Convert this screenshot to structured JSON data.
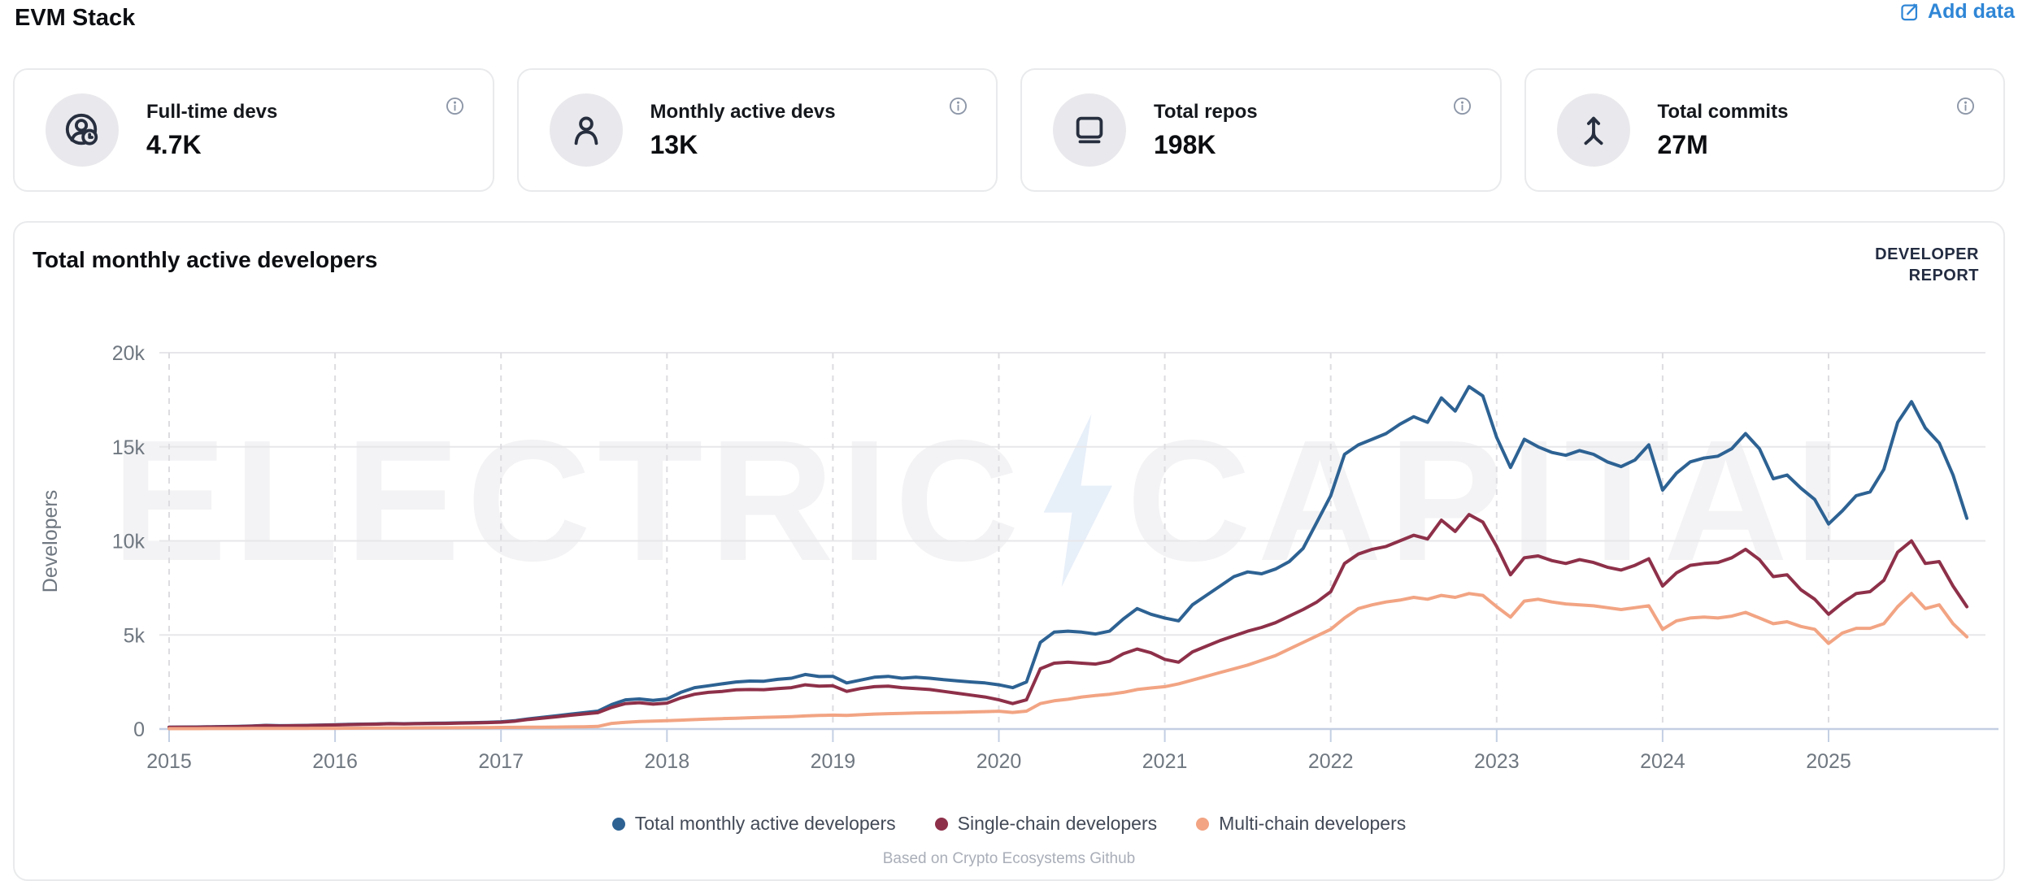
{
  "page": {
    "title": "EVM Stack"
  },
  "header": {
    "add_data_label": "Add data",
    "accent_color": "#2f86d6"
  },
  "stats": [
    {
      "label": "Full-time devs",
      "value": "4.7K",
      "icon": "fulltime-dev-icon"
    },
    {
      "label": "Monthly active devs",
      "value": "13K",
      "icon": "person-icon"
    },
    {
      "label": "Total repos",
      "value": "198K",
      "icon": "laptop-icon"
    },
    {
      "label": "Total commits",
      "value": "27M",
      "icon": "merge-arrow-icon"
    }
  ],
  "chart_card": {
    "title": "Total monthly active developers",
    "badge_line1": "DEVELOPER",
    "badge_line2": "REPORT",
    "watermark_left": "ELECTRIC",
    "watermark_right": "CAPITAL",
    "footer": "Based on Crypto Ecosystems Github"
  },
  "chart_data": {
    "type": "line",
    "title": "Total monthly active developers",
    "xlabel": "",
    "ylabel": "Developers",
    "ylim": [
      0,
      20000
    ],
    "yticks": [
      {
        "v": 0,
        "label": "0"
      },
      {
        "v": 5000,
        "label": "5k"
      },
      {
        "v": 10000,
        "label": "10k"
      },
      {
        "v": 15000,
        "label": "15k"
      },
      {
        "v": 20000,
        "label": "20k"
      }
    ],
    "xticks": [
      {
        "v": 2015,
        "label": "2015"
      },
      {
        "v": 2016,
        "label": "2016"
      },
      {
        "v": 2017,
        "label": "2017"
      },
      {
        "v": 2018,
        "label": "2018"
      },
      {
        "v": 2019,
        "label": "2019"
      },
      {
        "v": 2020,
        "label": "2020"
      },
      {
        "v": 2021,
        "label": "2021"
      },
      {
        "v": 2022,
        "label": "2022"
      },
      {
        "v": 2023,
        "label": "2023"
      },
      {
        "v": 2024,
        "label": "2024"
      },
      {
        "v": 2025,
        "label": "2025"
      }
    ],
    "grid": {
      "horizontal": "solid",
      "vertical": "dashed"
    },
    "legend_position": "bottom",
    "x_start": 2015.0,
    "x_step": 0.083333,
    "x_unit": "year (monthly samples, Jan 2015 - Nov 2025)",
    "series": [
      {
        "name": "Total monthly active developers",
        "color": "#2d6293",
        "values": [
          100,
          105,
          110,
          120,
          130,
          140,
          160,
          195,
          175,
          185,
          195,
          210,
          225,
          245,
          260,
          270,
          290,
          280,
          295,
          305,
          315,
          330,
          340,
          360,
          385,
          440,
          540,
          620,
          700,
          790,
          870,
          950,
          1300,
          1550,
          1600,
          1520,
          1600,
          1950,
          2200,
          2300,
          2400,
          2500,
          2550,
          2540,
          2640,
          2700,
          2900,
          2790,
          2800,
          2450,
          2600,
          2750,
          2800,
          2700,
          2750,
          2700,
          2620,
          2560,
          2500,
          2450,
          2350,
          2200,
          2500,
          4600,
          5150,
          5200,
          5150,
          5050,
          5200,
          5850,
          6400,
          6100,
          5900,
          5750,
          6600,
          7100,
          7600,
          8100,
          8350,
          8250,
          8500,
          8900,
          9600,
          11000,
          12400,
          14600,
          15100,
          15400,
          15700,
          16200,
          16600,
          16300,
          17600,
          16900,
          18200,
          17700,
          15500,
          13900,
          15400,
          15000,
          14700,
          14550,
          14800,
          14600,
          14200,
          13950,
          14300,
          15100,
          12700,
          13600,
          14200,
          14400,
          14500,
          14900,
          15700,
          14900,
          13300,
          13500,
          12800,
          12200,
          10900,
          11600,
          12400,
          12600,
          13800,
          16300,
          17400,
          16000,
          15200,
          13500,
          11200
        ]
      },
      {
        "name": "Single-chain developers",
        "color": "#8e3049",
        "values": [
          90,
          95,
          100,
          110,
          120,
          130,
          150,
          185,
          165,
          175,
          185,
          200,
          215,
          235,
          250,
          260,
          280,
          268,
          283,
          292,
          300,
          312,
          322,
          340,
          365,
          415,
          510,
          580,
          650,
          730,
          800,
          870,
          1150,
          1350,
          1400,
          1320,
          1380,
          1650,
          1850,
          1950,
          2000,
          2080,
          2100,
          2090,
          2150,
          2200,
          2350,
          2280,
          2300,
          2000,
          2150,
          2250,
          2280,
          2200,
          2150,
          2100,
          2000,
          1900,
          1800,
          1700,
          1550,
          1350,
          1550,
          3200,
          3500,
          3550,
          3500,
          3450,
          3600,
          4000,
          4250,
          4050,
          3700,
          3550,
          4100,
          4400,
          4700,
          4950,
          5200,
          5400,
          5650,
          6000,
          6350,
          6750,
          7300,
          8800,
          9300,
          9550,
          9700,
          10000,
          10300,
          10100,
          11100,
          10500,
          11400,
          11000,
          9700,
          8200,
          9100,
          9200,
          8950,
          8800,
          9000,
          8850,
          8600,
          8450,
          8700,
          9050,
          7600,
          8300,
          8700,
          8800,
          8850,
          9100,
          9550,
          9000,
          8100,
          8200,
          7400,
          6900,
          6100,
          6700,
          7200,
          7300,
          7900,
          9400,
          10000,
          8800,
          8900,
          7600,
          6500
        ]
      },
      {
        "name": "Multi-chain developers",
        "color": "#f2a483",
        "values": [
          20,
          21,
          22,
          24,
          26,
          28,
          30,
          31,
          32,
          33,
          34,
          37,
          40,
          43,
          46,
          50,
          53,
          56,
          60,
          63,
          66,
          70,
          74,
          79,
          85,
          90,
          95,
          100,
          105,
          112,
          120,
          140,
          300,
          360,
          400,
          420,
          440,
          470,
          500,
          530,
          555,
          575,
          600,
          620,
          640,
          660,
          695,
          720,
          740,
          720,
          760,
          795,
          815,
          835,
          855,
          865,
          875,
          885,
          905,
          925,
          945,
          880,
          950,
          1350,
          1500,
          1580,
          1700,
          1780,
          1850,
          1950,
          2100,
          2180,
          2250,
          2400,
          2600,
          2800,
          3000,
          3200,
          3400,
          3650,
          3900,
          4250,
          4600,
          4950,
          5300,
          5900,
          6400,
          6600,
          6750,
          6850,
          7000,
          6900,
          7100,
          7000,
          7200,
          7100,
          6500,
          5950,
          6800,
          6900,
          6750,
          6650,
          6600,
          6550,
          6450,
          6350,
          6450,
          6550,
          5300,
          5750,
          5900,
          5950,
          5900,
          6000,
          6200,
          5900,
          5600,
          5700,
          5450,
          5300,
          4550,
          5100,
          5350,
          5350,
          5600,
          6500,
          7200,
          6400,
          6600,
          5600,
          4900
        ]
      }
    ]
  }
}
